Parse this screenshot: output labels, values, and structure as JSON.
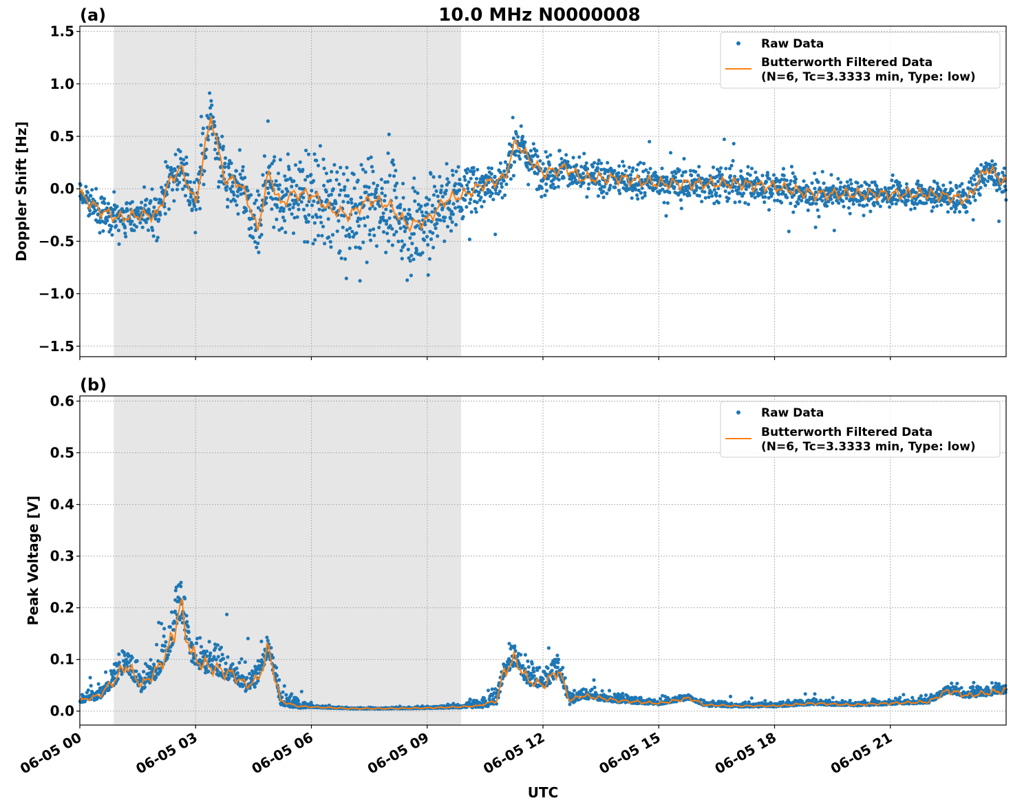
{
  "figure": {
    "title": "10.0 MHz N0000008",
    "xlabel": "UTC",
    "x_tick_labels": [
      "06-05 00",
      "06-05 03",
      "06-05 06",
      "06-05 09",
      "06-05 12",
      "06-05 15",
      "06-05 18",
      "06-05 21"
    ]
  },
  "colors": {
    "raw": "#1f77b4",
    "filtered": "#ff7f0e",
    "shade": "#e6e6e6"
  },
  "chart_data": [
    {
      "type": "scatter",
      "panel": "(a)",
      "ylabel": "Doppler Shift [Hz]",
      "xlim_hours": [
        0,
        24
      ],
      "ylim": [
        -1.6,
        1.55
      ],
      "y_ticks": [
        -1.5,
        -1.0,
        -0.5,
        0.0,
        0.5,
        1.0,
        1.5
      ],
      "y_tick_labels": [
        "−1.5",
        "−1.0",
        "−0.5",
        "0.0",
        "0.5",
        "1.0",
        "1.5"
      ],
      "shaded_span_hours": [
        0.88,
        9.88
      ],
      "legend": {
        "position": "top-right",
        "raw_label": "Raw Data",
        "filtered_label_line1": "Butterworth Filtered Data",
        "filtered_label_line2": "(N=6, Tc=3.3333 min, Type: low)"
      },
      "series": [
        {
          "name": "Butterworth Filtered Data",
          "hours": [
            0,
            0.5,
            1.0,
            1.5,
            2.0,
            2.3,
            2.6,
            2.8,
            3.0,
            3.2,
            3.4,
            3.6,
            3.8,
            4.0,
            4.3,
            4.6,
            4.9,
            5.2,
            5.5,
            6.0,
            6.5,
            7.0,
            7.5,
            8.0,
            8.5,
            9.0,
            9.5,
            10.0,
            10.5,
            11.0,
            11.3,
            11.6,
            12.0,
            12.6,
            13.0,
            14.0,
            15.0,
            16.0,
            17.0,
            18.0,
            19.0,
            20.0,
            21.0,
            22.0,
            23.0,
            23.5,
            24.0
          ],
          "values": [
            -0.05,
            -0.2,
            -0.28,
            -0.25,
            -0.25,
            0.05,
            0.2,
            0.05,
            -0.15,
            0.3,
            0.7,
            0.35,
            0.05,
            0.1,
            -0.05,
            -0.4,
            0.15,
            -0.15,
            -0.05,
            -0.05,
            -0.2,
            -0.25,
            -0.1,
            -0.15,
            -0.35,
            -0.3,
            -0.1,
            -0.05,
            0.05,
            0.1,
            0.45,
            0.3,
            0.15,
            0.2,
            0.1,
            0.1,
            0.05,
            0.05,
            0.05,
            0.02,
            -0.05,
            -0.05,
            -0.05,
            -0.05,
            -0.1,
            0.2,
            0.05
          ]
        },
        {
          "name": "Raw Data",
          "note_spread_hz": "scatter band around the filtered curve",
          "hours": [
            0,
            1,
            2,
            3,
            4,
            5,
            6,
            7,
            8,
            9,
            10,
            11,
            12,
            13,
            14,
            15,
            16,
            17,
            18,
            19,
            20,
            21,
            22,
            23,
            24
          ],
          "spread": [
            0.2,
            0.22,
            0.25,
            0.3,
            0.35,
            0.45,
            0.55,
            0.6,
            0.6,
            0.55,
            0.3,
            0.25,
            0.25,
            0.22,
            0.2,
            0.2,
            0.2,
            0.22,
            0.22,
            0.2,
            0.18,
            0.16,
            0.16,
            0.18,
            0.22
          ]
        }
      ]
    },
    {
      "type": "scatter",
      "panel": "(b)",
      "ylabel": "Peak Voltage [V]",
      "xlim_hours": [
        0,
        24
      ],
      "ylim": [
        -0.027,
        0.61
      ],
      "y_ticks": [
        0.0,
        0.1,
        0.2,
        0.3,
        0.4,
        0.5,
        0.6
      ],
      "y_tick_labels": [
        "0.0",
        "0.1",
        "0.2",
        "0.3",
        "0.4",
        "0.5",
        "0.6"
      ],
      "shaded_span_hours": [
        0.88,
        9.88
      ],
      "legend": {
        "position": "top-right",
        "raw_label": "Raw Data",
        "filtered_label_line1": "Butterworth Filtered Data",
        "filtered_label_line2": "(N=6, Tc=3.3333 min, Type: low)"
      },
      "series": [
        {
          "name": "Butterworth Filtered Data",
          "hours": [
            0,
            0.5,
            0.9,
            1.2,
            1.6,
            2.0,
            2.3,
            2.6,
            2.9,
            3.2,
            3.6,
            4.0,
            4.3,
            4.6,
            4.9,
            5.2,
            5.6,
            6.0,
            7.0,
            8.0,
            9.0,
            9.8,
            10.3,
            10.8,
            11.0,
            11.3,
            11.6,
            12.0,
            12.4,
            12.7,
            13.0,
            14.0,
            15.0,
            15.8,
            16.2,
            17.0,
            18.0,
            19.0,
            20.0,
            21.0,
            22.0,
            22.5,
            23.0,
            23.5,
            24.0
          ],
          "values": [
            0.02,
            0.03,
            0.06,
            0.09,
            0.05,
            0.08,
            0.12,
            0.2,
            0.11,
            0.09,
            0.08,
            0.07,
            0.05,
            0.06,
            0.12,
            0.02,
            0.01,
            0.008,
            0.005,
            0.005,
            0.006,
            0.008,
            0.01,
            0.02,
            0.08,
            0.1,
            0.06,
            0.05,
            0.08,
            0.02,
            0.03,
            0.02,
            0.015,
            0.025,
            0.012,
            0.01,
            0.01,
            0.015,
            0.012,
            0.015,
            0.018,
            0.04,
            0.03,
            0.035,
            0.04
          ]
        },
        {
          "name": "Raw Data",
          "hours": [
            0,
            1,
            2,
            2.6,
            3,
            4,
            5,
            6,
            7,
            8,
            9,
            10,
            11,
            11.5,
            12,
            12.5,
            13,
            14,
            15,
            16,
            17,
            18,
            19,
            20,
            21,
            22,
            23,
            24
          ],
          "spread": [
            0.015,
            0.04,
            0.06,
            0.09,
            0.06,
            0.05,
            0.04,
            0.004,
            0.002,
            0.002,
            0.003,
            0.008,
            0.04,
            0.05,
            0.04,
            0.04,
            0.02,
            0.015,
            0.01,
            0.01,
            0.008,
            0.008,
            0.009,
            0.008,
            0.009,
            0.01,
            0.02,
            0.02
          ]
        }
      ]
    }
  ]
}
